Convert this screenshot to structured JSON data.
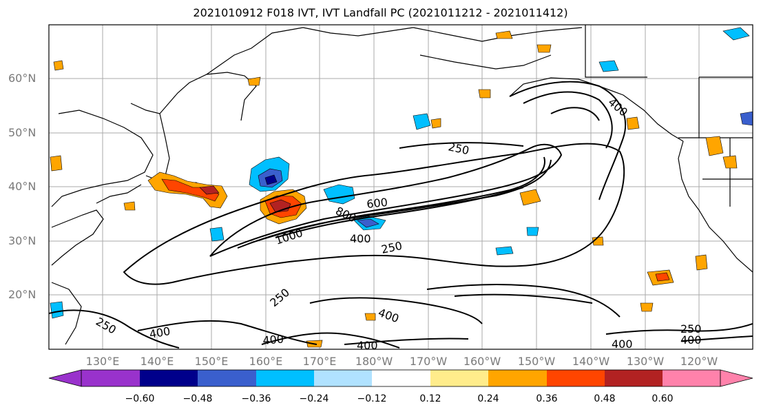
{
  "title": "2021010912 F018 IVT, IVT Landfall PC (2021011212 - 2021011412)",
  "lat_labels": [
    {
      "label": "60°N",
      "lat": 60
    },
    {
      "label": "50°N",
      "lat": 50
    },
    {
      "label": "40°N",
      "lat": 40
    },
    {
      "label": "30°N",
      "lat": 30
    },
    {
      "label": "20°N",
      "lat": 20
    }
  ],
  "lon_labels": [
    "130°E",
    "140°E",
    "150°E",
    "160°E",
    "170°E",
    "180°W",
    "170°W",
    "160°W",
    "150°W",
    "140°W",
    "130°W",
    "120°W"
  ],
  "colorbar": {
    "ticks": [
      "−0.60",
      "−0.48",
      "−0.36",
      "−0.24",
      "−0.12",
      "0.12",
      "0.24",
      "0.36",
      "0.48",
      "0.60"
    ],
    "colors": [
      "#9932cc",
      "#00008b",
      "#3a5fcd",
      "#00bfff",
      "#b0e2ff",
      "#ffffff",
      "#ffec8b",
      "#ffa500",
      "#ff4500",
      "#b22222",
      "#ff82ab"
    ]
  },
  "contour_labels": [
    "250",
    "400",
    "600",
    "800",
    "1000",
    "250",
    "400",
    "250",
    "400",
    "400",
    "400",
    "400",
    "250",
    "400",
    "400",
    "250"
  ]
}
